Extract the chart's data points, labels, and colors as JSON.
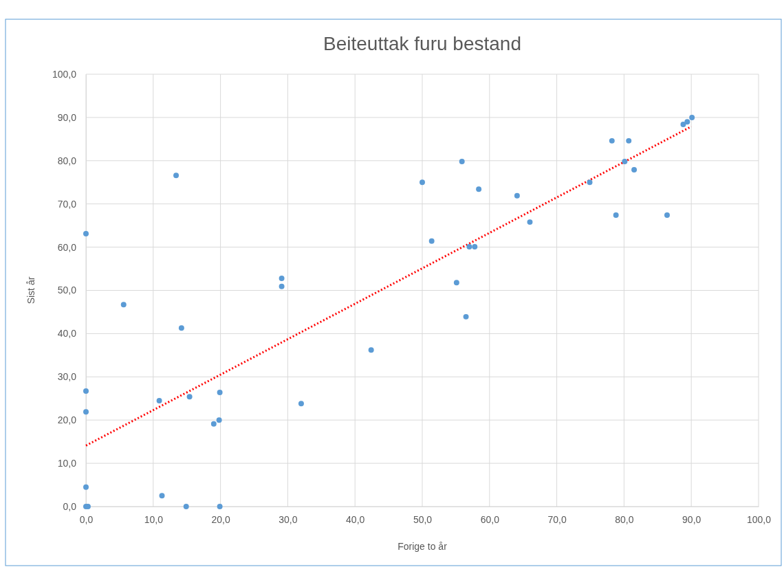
{
  "chart_data": {
    "type": "scatter",
    "title": "Beiteuttak furu bestand",
    "xlabel": "Forige to år",
    "ylabel": "Sist år",
    "xlim": [
      0,
      100
    ],
    "ylim": [
      0,
      100
    ],
    "xticks": [
      {
        "value": 0,
        "label": "0,0"
      },
      {
        "value": 10,
        "label": "10,0"
      },
      {
        "value": 20,
        "label": "20,0"
      },
      {
        "value": 30,
        "label": "30,0"
      },
      {
        "value": 40,
        "label": "40,0"
      },
      {
        "value": 50,
        "label": "50,0"
      },
      {
        "value": 60,
        "label": "60,0"
      },
      {
        "value": 70,
        "label": "70,0"
      },
      {
        "value": 80,
        "label": "80,0"
      },
      {
        "value": 90,
        "label": "90,0"
      },
      {
        "value": 100,
        "label": "100,0"
      }
    ],
    "yticks": [
      {
        "value": 0,
        "label": "0,0"
      },
      {
        "value": 10,
        "label": "10,0"
      },
      {
        "value": 20,
        "label": "20,0"
      },
      {
        "value": 30,
        "label": "30,0"
      },
      {
        "value": 40,
        "label": "40,0"
      },
      {
        "value": 50,
        "label": "50,0"
      },
      {
        "value": 60,
        "label": "60,0"
      },
      {
        "value": 70,
        "label": "70,0"
      },
      {
        "value": 80,
        "label": "80,0"
      },
      {
        "value": 90,
        "label": "90,0"
      },
      {
        "value": 100,
        "label": "100,0"
      }
    ],
    "grid": true,
    "series": [
      {
        "marker": "circle",
        "color": "#5b9bd5",
        "x": [
          0,
          5.6,
          13.4,
          14.2,
          0,
          0,
          10.9,
          15.4,
          19.9,
          19.8,
          19.0,
          0,
          0,
          0.3,
          11.3,
          14.9,
          19.9,
          29.1,
          29.1,
          32.0,
          42.4,
          50.0,
          51.4,
          55.1,
          55.9,
          56.5,
          57.0,
          57.8,
          58.4,
          64.1,
          66.0,
          74.9,
          78.2,
          78.8,
          80.1,
          80.7,
          81.5,
          86.4,
          88.8,
          89.4,
          90.1
        ],
        "values": [
          63.1,
          46.7,
          76.6,
          41.3,
          26.7,
          21.9,
          24.5,
          25.4,
          26.4,
          20.0,
          19.1,
          4.5,
          0,
          0,
          2.5,
          0,
          0,
          52.8,
          50.9,
          23.8,
          36.2,
          75.0,
          61.4,
          51.8,
          79.8,
          43.9,
          60.1,
          60.1,
          73.4,
          71.9,
          65.8,
          75.0,
          84.6,
          67.4,
          79.8,
          84.6,
          77.9,
          67.4,
          88.4,
          89.0,
          90.0
        ]
      },
      {
        "type": "line",
        "color": "#ff0000",
        "line_style": "dotted",
        "x": [
          0,
          90
        ],
        "values": [
          14.1,
          87.9
        ]
      }
    ]
  }
}
